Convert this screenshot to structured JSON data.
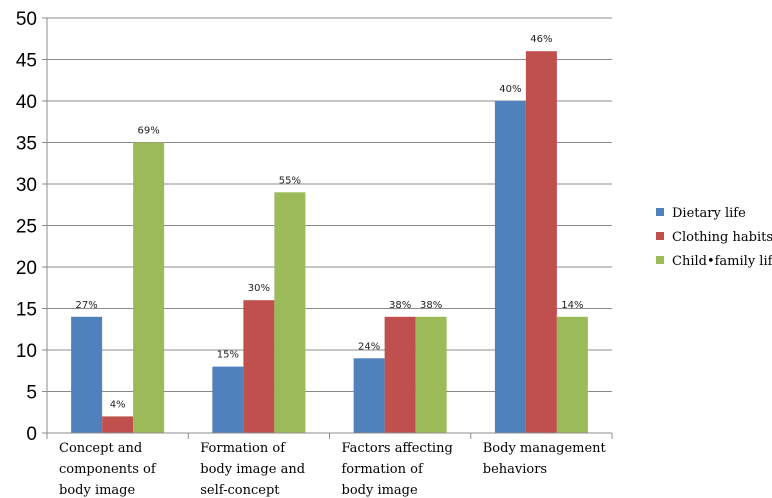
{
  "chart_data": {
    "type": "bar",
    "categories": [
      [
        "Concept and",
        "components of",
        "body image"
      ],
      [
        "Formation of",
        "body image and",
        "self-concept"
      ],
      [
        "Factors affecting",
        "formation of",
        "body image"
      ],
      [
        "Body management",
        "behaviors"
      ]
    ],
    "series": [
      {
        "name": "Dietary life",
        "color": "#4f81bd",
        "values": [
          14,
          8,
          9,
          40
        ],
        "labels": [
          "27%",
          "15%",
          "24%",
          "40%"
        ]
      },
      {
        "name": "Clothing habits",
        "color": "#c0504d",
        "values": [
          2,
          16,
          14,
          46
        ],
        "labels": [
          "4%",
          "30%",
          "38%",
          "46%"
        ]
      },
      {
        "name": "Child•family life",
        "color": "#9bbb59",
        "values": [
          35,
          29,
          14,
          14
        ],
        "labels": [
          "69%",
          "55%",
          "38%",
          "14%"
        ]
      }
    ],
    "ylim": [
      0,
      50
    ],
    "yticks": [
      0,
      5,
      10,
      15,
      20,
      25,
      30,
      35,
      40,
      45,
      50
    ],
    "grid": true,
    "legend_position": "right"
  }
}
